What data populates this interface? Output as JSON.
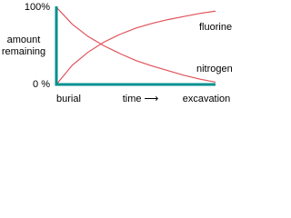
{
  "chart_data": {
    "type": "line",
    "x": [
      0,
      1,
      2,
      3,
      4,
      5,
      6,
      7,
      8,
      9,
      10
    ],
    "series": [
      {
        "name": "fluorine",
        "color": "#e0525a",
        "values": [
          0,
          25,
          42,
          55,
          65,
          73,
          79,
          84,
          88,
          92,
          95
        ]
      },
      {
        "name": "nitrogen",
        "color": "#e0525a",
        "values": [
          100,
          78,
          62,
          50,
          40,
          31,
          24,
          18,
          12,
          7,
          3
        ]
      }
    ],
    "xlim": [
      0,
      10
    ],
    "xticks": [
      {
        "value": 0,
        "label": "burial"
      },
      {
        "value": 10,
        "label": "excavation"
      }
    ],
    "ylim": [
      0,
      100
    ],
    "yticks": [
      {
        "value": 100,
        "label": "100%"
      },
      {
        "value": 0,
        "label": "0 %"
      }
    ],
    "x_label": "time ⟶",
    "y_label": "amount remaining",
    "axis_color": "#009090",
    "grid": false
  }
}
